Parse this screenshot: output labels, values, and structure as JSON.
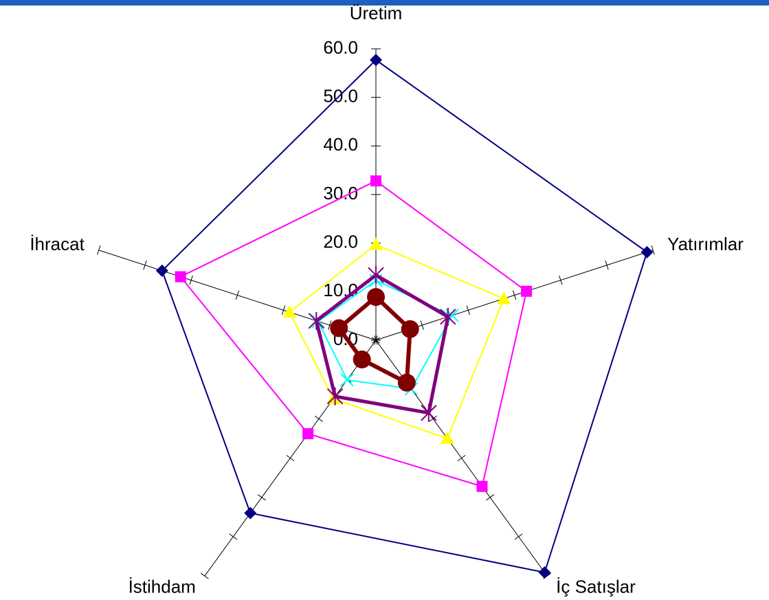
{
  "chart_data": {
    "type": "radar",
    "categories": [
      "Üretim",
      "Yatırımlar",
      "İç Satışlar",
      "İstihdam",
      "İhracat"
    ],
    "series": [
      {
        "color": "#000080",
        "marker": "diamond",
        "values": [
          57.7,
          58.7,
          59.1,
          44.0,
          46.3
        ]
      },
      {
        "color": "#ff00ff",
        "marker": "square",
        "values": [
          32.8,
          32.6,
          37.2,
          23.8,
          42.3
        ]
      },
      {
        "color": "#ffff00",
        "marker": "triangle",
        "values": [
          19.7,
          27.7,
          25.0,
          14.9,
          18.7
        ]
      },
      {
        "color": "#00ffff",
        "marker": "x",
        "values": [
          12.3,
          16.5,
          12.4,
          10.1,
          12.5
        ]
      },
      {
        "color": "#800080",
        "marker": "star",
        "values": [
          13.4,
          15.6,
          18.5,
          14.3,
          12.9
        ]
      },
      {
        "color": "#800000",
        "marker": "circle",
        "values": [
          8.9,
          7.4,
          10.8,
          4.9,
          8.0
        ]
      }
    ],
    "ylim": [
      0,
      60
    ],
    "yticks": [
      {
        "value": 0,
        "label": "0.0"
      },
      {
        "value": 10,
        "label": "10.0"
      },
      {
        "value": 20,
        "label": "20.0"
      },
      {
        "value": 30,
        "label": "30.0"
      },
      {
        "value": 40,
        "label": "40.0"
      },
      {
        "value": 50,
        "label": "50.0"
      },
      {
        "value": 60,
        "label": "60.0"
      }
    ]
  }
}
